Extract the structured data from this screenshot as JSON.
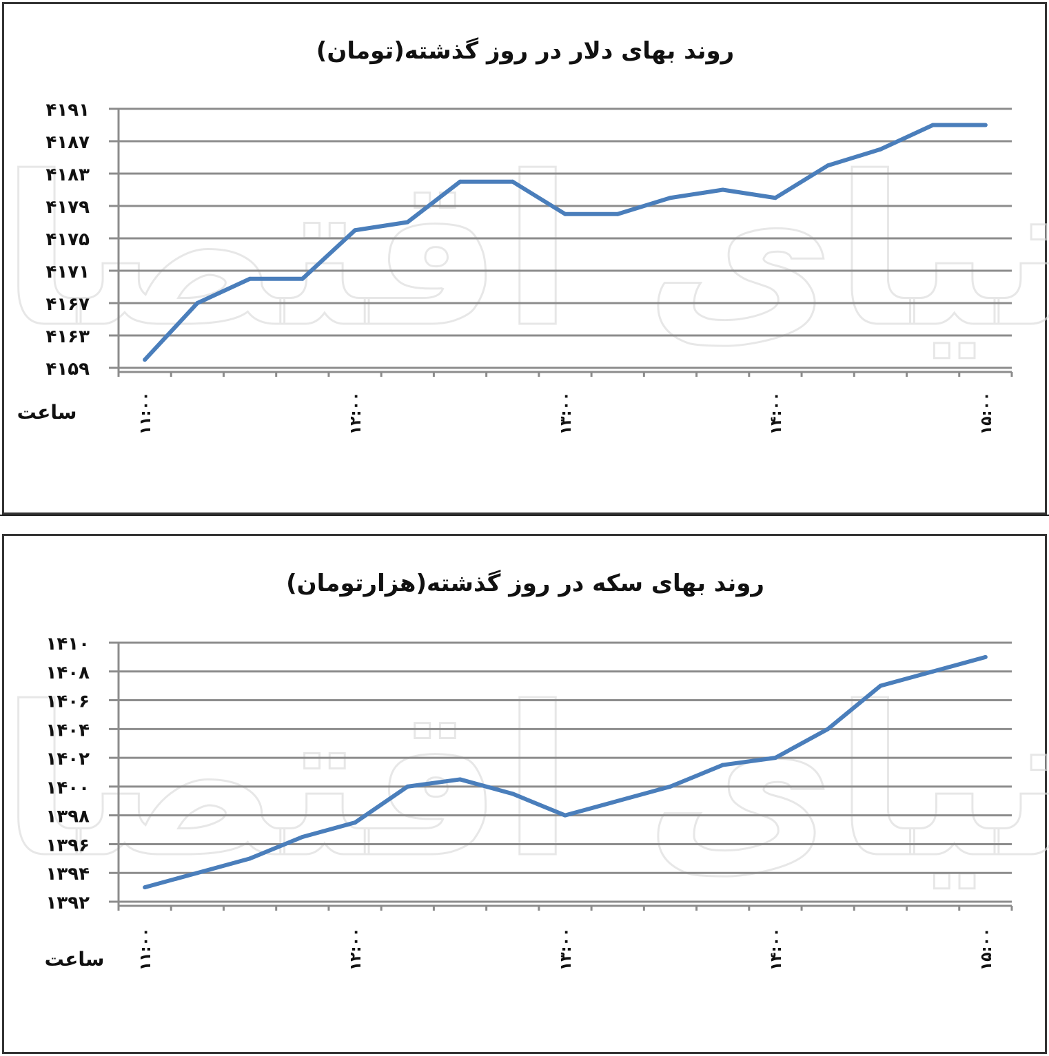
{
  "watermark": "دنیای اقتصاد",
  "chart_data": [
    {
      "type": "line",
      "title": "روند بهای دلار در روز گذشته(تومان)",
      "xlabel": "ساعت",
      "ylabel": "",
      "categories": [
        "11:00",
        "11:15",
        "11:30",
        "11:45",
        "12:00",
        "12:15",
        "12:30",
        "12:45",
        "13:00",
        "13:15",
        "13:30",
        "13:45",
        "14:00",
        "14:15",
        "14:30",
        "14:45",
        "15:00"
      ],
      "x_tick_labels": [
        "۱۱:۰۰",
        "۱۲:۰۰",
        "۱۳:۰۰",
        "۱۴:۰۰",
        "۱۵:۰۰"
      ],
      "y_tick_values": [
        4159,
        4163,
        4167,
        4171,
        4175,
        4179,
        4183,
        4187,
        4191
      ],
      "y_tick_labels": [
        "۴۱۵۹",
        "۴۱۶۳",
        "۴۱۶۷",
        "۴۱۷۱",
        "۴۱۷۵",
        "۴۱۷۹",
        "۴۱۸۳",
        "۴۱۸۷",
        "۴۱۹۱"
      ],
      "ylim": [
        4159,
        4191
      ],
      "grid": true,
      "color": "#4a7ebb",
      "values": [
        4160,
        4167,
        4170,
        4170,
        4176,
        4177,
        4182,
        4182,
        4178,
        4178,
        4180,
        4181,
        4180,
        4184,
        4186,
        4189,
        4189
      ]
    },
    {
      "type": "line",
      "title": "روند بهای سکه در روز گذشته(هزارتومان)",
      "xlabel": "ساعت",
      "ylabel": "",
      "categories": [
        "11:00",
        "11:15",
        "11:30",
        "11:45",
        "12:00",
        "12:15",
        "12:30",
        "12:45",
        "13:00",
        "13:15",
        "13:30",
        "13:45",
        "14:00",
        "14:15",
        "14:30",
        "14:45",
        "15:00"
      ],
      "x_tick_labels": [
        "۱۱:۰۰",
        "۱۲:۰۰",
        "۱۳:۰۰",
        "۱۴:۰۰",
        "۱۵:۰۰"
      ],
      "y_tick_values": [
        1392,
        1394,
        1396,
        1398,
        1400,
        1402,
        1404,
        1406,
        1408,
        1410
      ],
      "y_tick_labels": [
        "۱۳۹۲",
        "۱۳۹۴",
        "۱۳۹۶",
        "۱۳۹۸",
        "۱۴۰۰",
        "۱۴۰۲",
        "۱۴۰۴",
        "۱۴۰۶",
        "۱۴۰۸",
        "۱۴۱۰"
      ],
      "ylim": [
        1392,
        1410
      ],
      "grid": true,
      "color": "#4a7ebb",
      "values": [
        1393,
        1394,
        1395,
        1396.5,
        1397.5,
        1400,
        1400.5,
        1399.5,
        1398,
        1399,
        1400,
        1401.5,
        1402,
        1404,
        1407,
        1408,
        1409
      ]
    }
  ]
}
